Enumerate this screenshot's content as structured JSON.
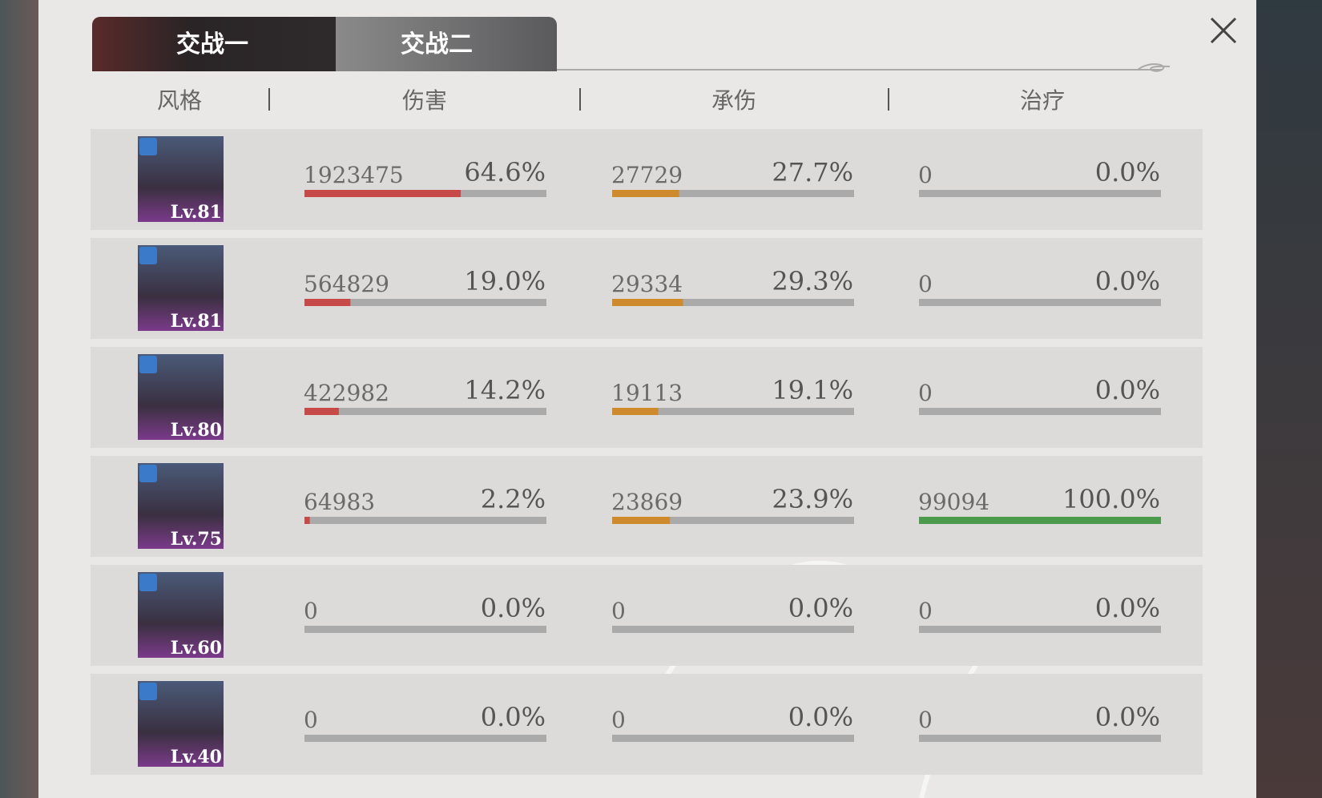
{
  "tabs": [
    "交战一",
    "交战二"
  ],
  "headers": [
    "风格",
    "伤害",
    "承伤",
    "治疗"
  ],
  "rows": [
    {
      "level": "Lv.81",
      "damage": {
        "value": 1923475,
        "pct": 64.6,
        "pct_label": "64.6%"
      },
      "taken": {
        "value": 27729,
        "pct": 27.7,
        "pct_label": "27.7%"
      },
      "heal": {
        "value": 0,
        "pct": 0,
        "pct_label": "0.0%"
      }
    },
    {
      "level": "Lv.81",
      "damage": {
        "value": 564829,
        "pct": 19.0,
        "pct_label": "19.0%"
      },
      "taken": {
        "value": 29334,
        "pct": 29.3,
        "pct_label": "29.3%"
      },
      "heal": {
        "value": 0,
        "pct": 0,
        "pct_label": "0.0%"
      }
    },
    {
      "level": "Lv.80",
      "damage": {
        "value": 422982,
        "pct": 14.2,
        "pct_label": "14.2%"
      },
      "taken": {
        "value": 19113,
        "pct": 19.1,
        "pct_label": "19.1%"
      },
      "heal": {
        "value": 0,
        "pct": 0,
        "pct_label": "0.0%"
      }
    },
    {
      "level": "Lv.75",
      "damage": {
        "value": 64983,
        "pct": 2.2,
        "pct_label": "2.2%"
      },
      "taken": {
        "value": 23869,
        "pct": 23.9,
        "pct_label": "23.9%"
      },
      "heal": {
        "value": 99094,
        "pct": 100.0,
        "pct_label": "100.0%"
      }
    },
    {
      "level": "Lv.60",
      "damage": {
        "value": 0,
        "pct": 0,
        "pct_label": "0.0%"
      },
      "taken": {
        "value": 0,
        "pct": 0,
        "pct_label": "0.0%"
      },
      "heal": {
        "value": 0,
        "pct": 0,
        "pct_label": "0.0%"
      }
    },
    {
      "level": "Lv.40",
      "damage": {
        "value": 0,
        "pct": 0,
        "pct_label": "0.0%"
      },
      "taken": {
        "value": 0,
        "pct": 0,
        "pct_label": "0.0%"
      },
      "heal": {
        "value": 0,
        "pct": 0,
        "pct_label": "0.0%"
      }
    }
  ]
}
